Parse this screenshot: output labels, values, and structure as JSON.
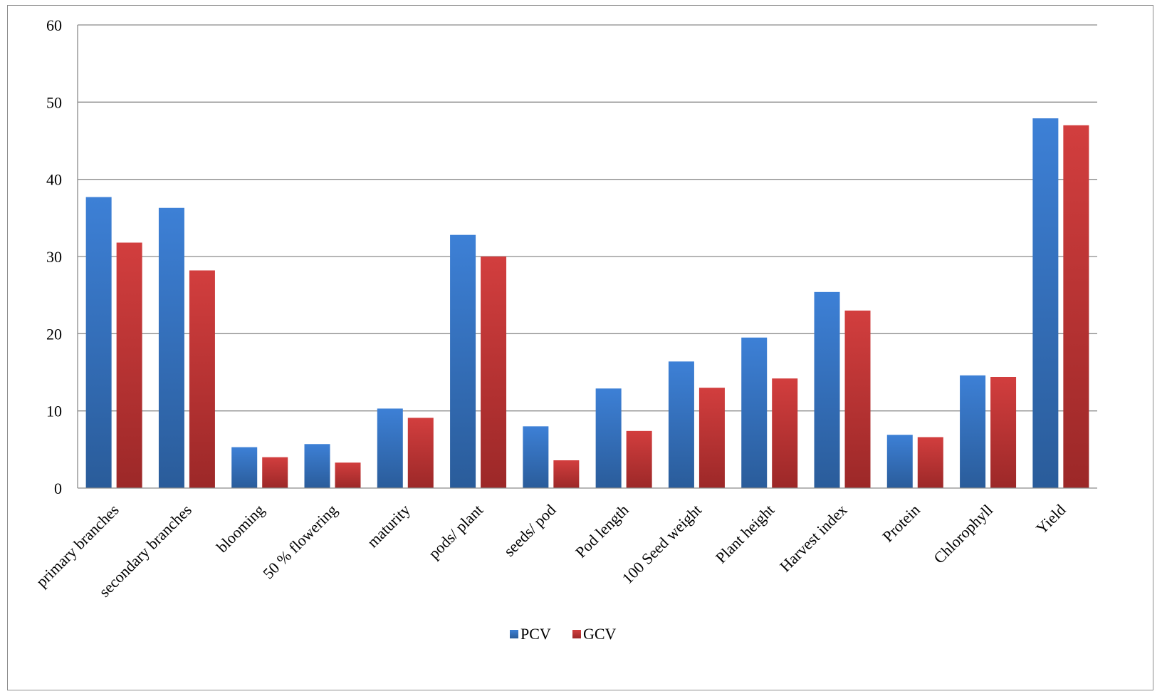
{
  "chart_data": {
    "type": "bar",
    "categories": [
      "primary branches",
      "secondary branches",
      "blooming",
      "50 % flowering",
      "maturity",
      "pods/ plant",
      "seeds/ pod",
      "Pod length",
      "100 Seed weight",
      "Plant height",
      "Harvest index",
      "Protein",
      "Chlorophyll",
      "Yield"
    ],
    "series": [
      {
        "name": "PCV",
        "color": "#3b7dd0",
        "values": [
          37.7,
          36.3,
          5.3,
          5.7,
          10.3,
          32.8,
          8.0,
          12.9,
          16.4,
          19.5,
          25.4,
          6.9,
          14.6,
          47.9
        ]
      },
      {
        "name": "GCV",
        "color": "#cf3a3a",
        "values": [
          31.8,
          28.2,
          4.0,
          3.3,
          9.1,
          30.0,
          3.6,
          7.4,
          13.0,
          14.2,
          23.0,
          6.6,
          14.4,
          47.0
        ]
      }
    ],
    "yticks": [
      "0",
      "10",
      "20",
      "30",
      "40",
      "50",
      "60"
    ],
    "ylim": [
      0,
      60
    ],
    "grid": true,
    "legend_position": "bottom",
    "title": "",
    "xlabel": "",
    "ylabel": ""
  }
}
